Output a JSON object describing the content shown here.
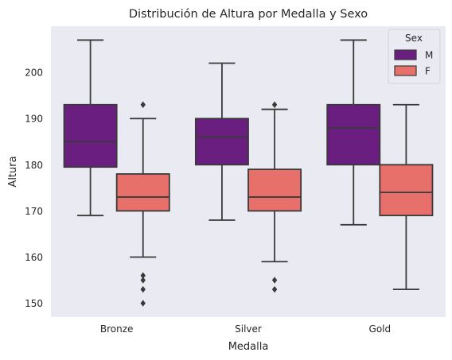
{
  "chart_data": {
    "type": "boxplot",
    "title": "Distribución de Altura por Medalla y Sexo",
    "xlabel": "Medalla",
    "ylabel": "Altura",
    "categories": [
      "Bronze",
      "Silver",
      "Gold"
    ],
    "ylim": [
      147,
      210
    ],
    "yticks": [
      150,
      160,
      170,
      180,
      190,
      200
    ],
    "grid": false,
    "legend": {
      "title": "Sex",
      "placement": "top-right"
    },
    "series": [
      {
        "name": "M",
        "color": "#6a1e80",
        "boxes": [
          {
            "whislo": 169,
            "q1": 179.5,
            "med": 185,
            "q3": 193,
            "whishi": 207,
            "fliers": []
          },
          {
            "whislo": 168,
            "q1": 180,
            "med": 186,
            "q3": 190,
            "whishi": 202,
            "fliers": []
          },
          {
            "whislo": 167,
            "q1": 180,
            "med": 188,
            "q3": 193,
            "whishi": 207,
            "fliers": []
          }
        ]
      },
      {
        "name": "F",
        "color": "#e8706a",
        "boxes": [
          {
            "whislo": 160,
            "q1": 170,
            "med": 173,
            "q3": 178,
            "whishi": 190,
            "fliers": [
              193,
              156,
              155,
              153,
              150
            ]
          },
          {
            "whislo": 159,
            "q1": 170,
            "med": 173,
            "q3": 179,
            "whishi": 192,
            "fliers": [
              193,
              155,
              153
            ]
          },
          {
            "whislo": 153,
            "q1": 169,
            "med": 174,
            "q3": 180,
            "whishi": 193,
            "fliers": []
          }
        ]
      }
    ]
  }
}
